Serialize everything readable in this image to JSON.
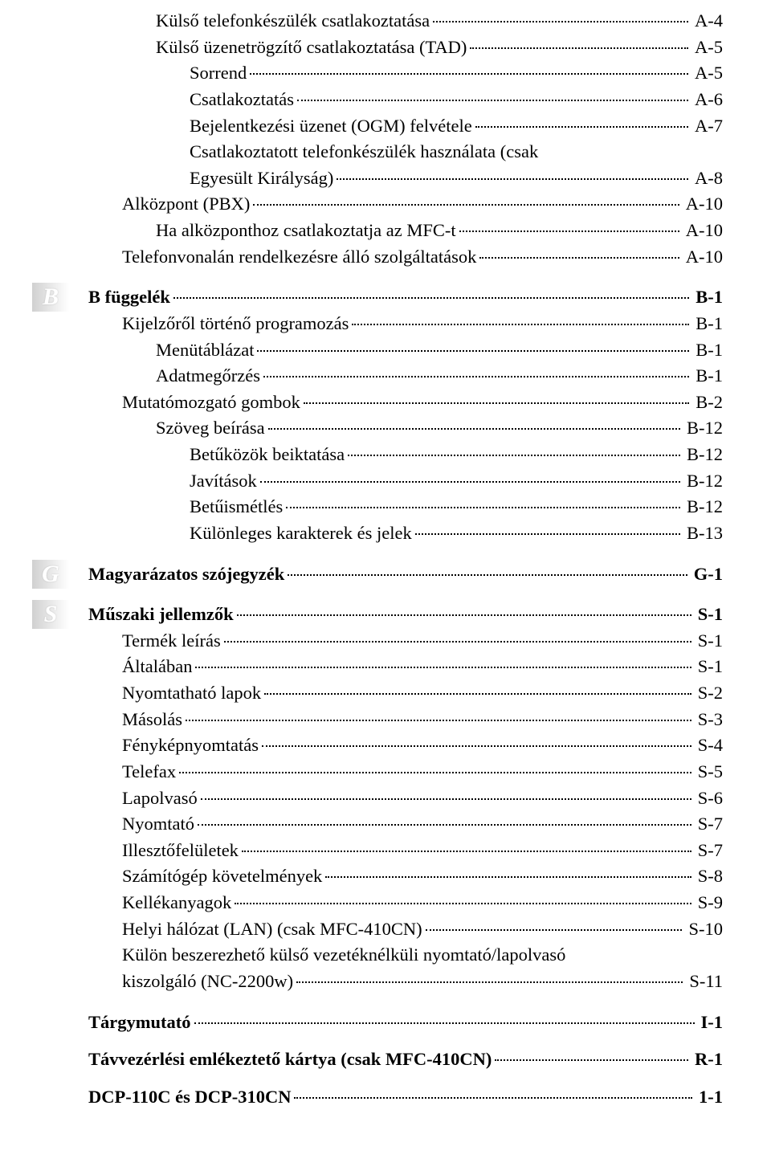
{
  "sections": {
    "a": {
      "items": [
        {
          "label": "Külső telefonkészülék csatlakoztatása",
          "page": "A-4",
          "indent": 2
        },
        {
          "label": "Külső üzenetrögzítő csatlakoztatása (TAD)",
          "page": "A-5",
          "indent": 2
        },
        {
          "label": "Sorrend",
          "page": "A-5",
          "indent": 3
        },
        {
          "label": "Csatlakoztatás",
          "page": "A-6",
          "indent": 3
        },
        {
          "label": "Bejelentkezési üzenet (OGM) felvétele",
          "page": "A-7",
          "indent": 3
        },
        {
          "label_pre": "Csatlakoztatott telefonkészülék használata (csak",
          "label_last": "Egyesült Királyság)",
          "page": "A-8",
          "indent": 3,
          "wrap": true
        },
        {
          "label": "Alközpont (PBX)",
          "page": "A-10",
          "indent": 1
        },
        {
          "label": "Ha alközponthoz csatlakoztatja az MFC-t",
          "page": "A-10",
          "indent": 2
        },
        {
          "label": "Telefonvonalán rendelkezésre álló szolgáltatások",
          "page": "A-10",
          "indent": 1
        }
      ]
    },
    "b": {
      "badge": "B",
      "items": [
        {
          "label": "B függelék",
          "page": "B-1",
          "indent": 0,
          "bold": true
        },
        {
          "label": "Kijelzőről történő programozás",
          "page": "B-1",
          "indent": 1
        },
        {
          "label": "Menütáblázat",
          "page": "B-1",
          "indent": 2
        },
        {
          "label": "Adatmegőrzés",
          "page": "B-1",
          "indent": 2
        },
        {
          "label": "Mutatómozgató gombok",
          "page": "B-2",
          "indent": 1
        },
        {
          "label": "Szöveg beírása",
          "page": "B-12",
          "indent": 2
        },
        {
          "label": "Betűközök beiktatása",
          "page": "B-12",
          "indent": 3
        },
        {
          "label": "Javítások",
          "page": "B-12",
          "indent": 3
        },
        {
          "label": "Betűismétlés",
          "page": "B-12",
          "indent": 3
        },
        {
          "label": "Különleges karakterek és jelek",
          "page": "B-13",
          "indent": 3
        }
      ]
    },
    "g": {
      "badge": "G",
      "items": [
        {
          "label": "Magyarázatos szójegyzék",
          "page": "G-1",
          "indent": 0,
          "bold": true
        }
      ]
    },
    "s": {
      "badge": "S",
      "items": [
        {
          "label": "Műszaki jellemzők",
          "page": "S-1",
          "indent": 0,
          "bold": true
        },
        {
          "label": "Termék leírás",
          "page": "S-1",
          "indent": 1
        },
        {
          "label": "Általában",
          "page": "S-1",
          "indent": 1
        },
        {
          "label": "Nyomtatható lapok",
          "page": "S-2",
          "indent": 1
        },
        {
          "label": "Másolás",
          "page": "S-3",
          "indent": 1
        },
        {
          "label": "Fényképnyomtatás",
          "page": "S-4",
          "indent": 1
        },
        {
          "label": "Telefax",
          "page": "S-5",
          "indent": 1
        },
        {
          "label": "Lapolvasó",
          "page": "S-6",
          "indent": 1
        },
        {
          "label": "Nyomtató",
          "page": "S-7",
          "indent": 1
        },
        {
          "label": "Illesztőfelületek",
          "page": "S-7",
          "indent": 1
        },
        {
          "label": "Számítógép követelmények",
          "page": "S-8",
          "indent": 1
        },
        {
          "label": "Kellékanyagok",
          "page": "S-9",
          "indent": 1
        },
        {
          "label": "Helyi hálózat (LAN) (csak MFC-410CN)",
          "page": "S-10",
          "indent": 1
        },
        {
          "label_pre": "Külön beszerezhető külső vezetéknélküli nyomtató/lapolvasó",
          "label_last": "kiszolgáló (NC-2200w)",
          "page": "S-11",
          "indent": 1,
          "wrap": true
        }
      ]
    },
    "extras": [
      {
        "label": "Tárgymutató",
        "page": "I-1",
        "indent": 0,
        "bold": true
      },
      {
        "label": "Távvezérlési emlékeztető kártya (csak MFC-410CN)",
        "page": "R-1",
        "indent": 0,
        "bold": true
      },
      {
        "label": "DCP-110C és DCP-310CN",
        "page": "1-1",
        "indent": 0,
        "bold": true
      }
    ]
  }
}
